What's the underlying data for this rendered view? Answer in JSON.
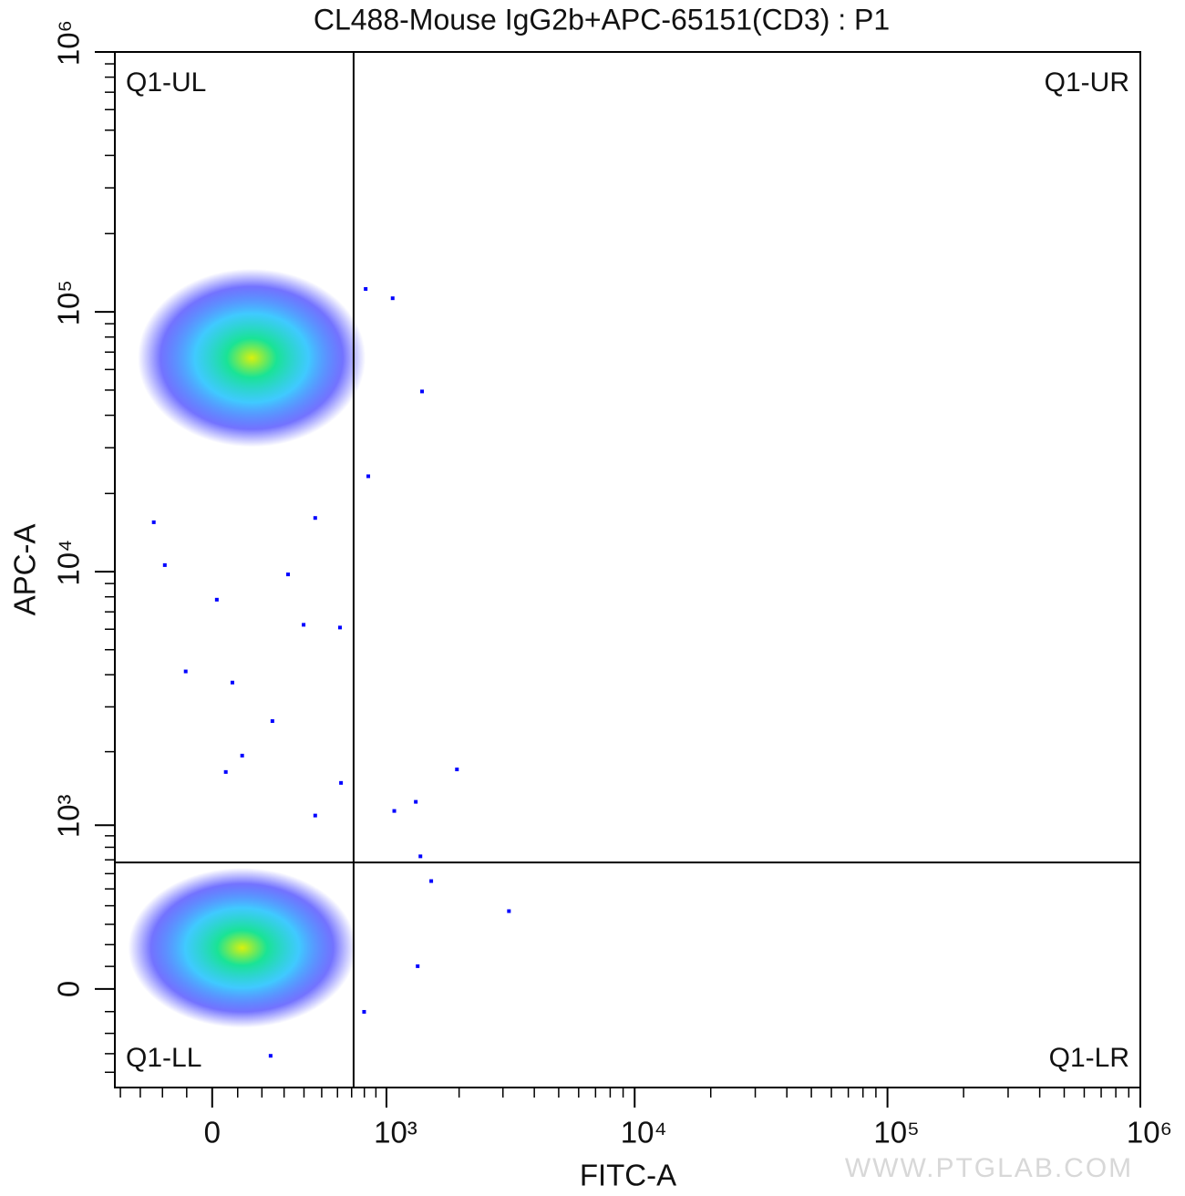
{
  "chart_data": {
    "type": "flow_dot_plot",
    "title": "CL488-Mouse IgG2b+APC-65151(CD3) : P1",
    "x_label": "FITC-A",
    "y_label": "APC-A",
    "watermark": "WWW.PTGLAB.COM",
    "scale": {
      "type": "asinh",
      "x_cofactor": 427,
      "y_cofactor": 496
    },
    "xlim": [
      -430,
      1000000
    ],
    "ylim": [
      -490,
      1000000
    ],
    "xticks": [
      0,
      {
        "value": 1000,
        "label": "10³"
      },
      {
        "value": 10000,
        "label": "10⁴"
      },
      {
        "value": 100000,
        "label": "10⁵"
      },
      {
        "value": 1000000,
        "label": "10⁶"
      }
    ],
    "yticks": [
      0,
      {
        "value": 1000,
        "label": "10³"
      },
      {
        "value": 10000,
        "label": "10⁴"
      },
      {
        "value": 100000,
        "label": "10⁵"
      },
      {
        "value": 1000000,
        "label": "10⁶"
      }
    ],
    "xminor": [
      -400,
      -300,
      -200,
      -100,
      100,
      200,
      300,
      400,
      500,
      600,
      700,
      800,
      900,
      2000,
      3000,
      4000,
      5000,
      6000,
      7000,
      8000,
      9000,
      20000,
      30000,
      40000,
      50000,
      60000,
      70000,
      80000,
      90000,
      200000,
      300000,
      400000,
      500000,
      600000,
      700000,
      800000,
      900000
    ],
    "yminor": [
      -400,
      -300,
      -200,
      -100,
      100,
      200,
      300,
      400,
      500,
      600,
      700,
      800,
      900,
      2000,
      3000,
      4000,
      5000,
      6000,
      7000,
      8000,
      9000,
      20000,
      30000,
      40000,
      50000,
      60000,
      70000,
      80000,
      90000,
      200000,
      300000,
      400000,
      500000,
      600000,
      700000,
      800000,
      900000
    ],
    "gate": {
      "x": 715,
      "y": 680
    },
    "quadrants": [
      "Q1-UL",
      "Q1-UR",
      "Q1-LL",
      "Q1-LR"
    ],
    "density_colors": [
      "#0000ff",
      "#00b8ff",
      "#00e08a",
      "#d8f000"
    ],
    "populations": [
      {
        "center": [
          157,
          66500
        ],
        "x_range": [
          -384,
          698
        ],
        "y_range": [
          29700,
          144000
        ]
      },
      {
        "center": [
          118,
          185
        ],
        "x_range": [
          -384,
          698
        ],
        "y_range": [
          -229,
          560
        ]
      }
    ],
    "points": {
      "color": "#0000ff",
      "x": [
        1960,
        3170,
        1540,
        1330,
        1080,
        1390,
        246,
        -104,
        118,
        617,
        398,
        53,
        79,
        -190,
        811,
        1063,
        1412,
        833,
        624,
        462,
        798,
        1354,
        238,
        319,
        18,
        462,
        -238
      ],
      "y": [
        1700,
        370,
        550,
        1255,
        1150,
        727,
        2640,
        4120,
        1930,
        6090,
        6240,
        1660,
        3730,
        10600,
        122500,
        112800,
        49400,
        23300,
        1500,
        1100,
        -101,
        101,
        -311,
        9760,
        7800,
        16100,
        15500
      ]
    }
  }
}
